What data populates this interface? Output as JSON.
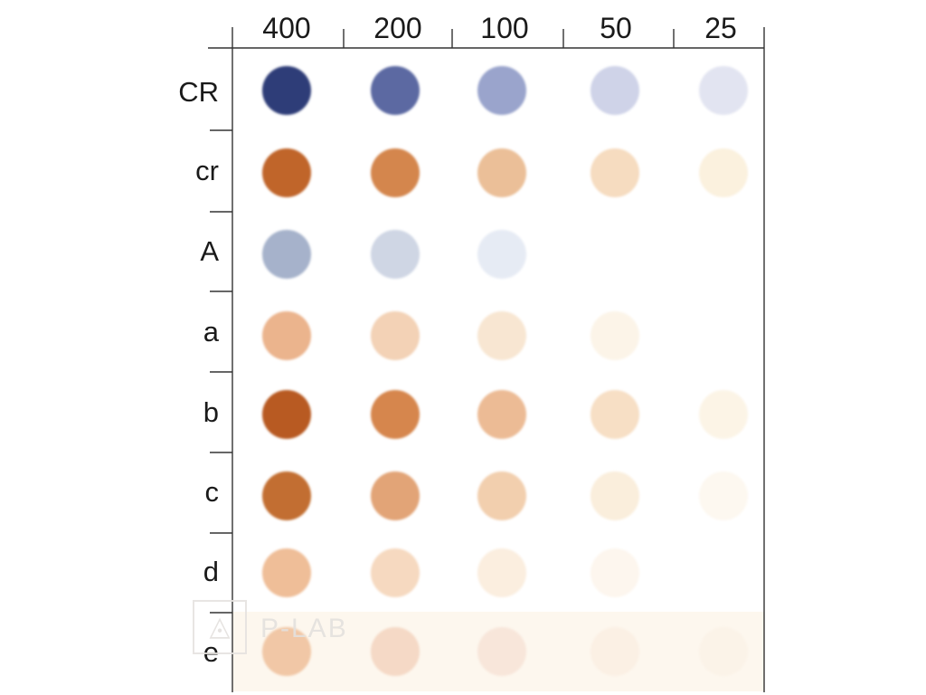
{
  "columns": [
    "400",
    "200",
    "100",
    "50",
    "25"
  ],
  "rows": [
    "CR",
    "cr",
    "A",
    "a",
    "b",
    "c",
    "d",
    "e"
  ],
  "watermark": "P-LAB",
  "colors": {
    "blue_dark": "#2e3c78",
    "brown_dark": "#b85a22",
    "background": "#ffffff",
    "frame": "#333333"
  },
  "spots": [
    [
      "#2e3c78",
      "#5c69a2",
      "#9aa4cc",
      "#cfd3e8",
      "#e2e4f1"
    ],
    [
      "#c0652c",
      "#d4864e",
      "#ebbf98",
      "#f6dcc0",
      "#fbf1de"
    ],
    [
      "#a6b2cb",
      "#cfd6e4",
      "#e6ebf4",
      null,
      null
    ],
    [
      "#ebb48d",
      "#f3d2b6",
      "#f8e6d2",
      "#fcf4e8",
      null
    ],
    [
      "#b85a22",
      "#d6864e",
      "#ecbb95",
      "#f7dfc5",
      "#fcf4e6"
    ],
    [
      "#c26e32",
      "#e2a477",
      "#f2cfae",
      "#faeedc",
      "#fdf8f0"
    ],
    [
      "#efbe98",
      "#f6d9c0",
      "#fbeedf",
      "#fdf6ee",
      null
    ],
    [
      "#f1c7a6",
      "#f5d9c6",
      "#f8e6da",
      "#fbf0e4",
      "#fbf3e8"
    ]
  ]
}
